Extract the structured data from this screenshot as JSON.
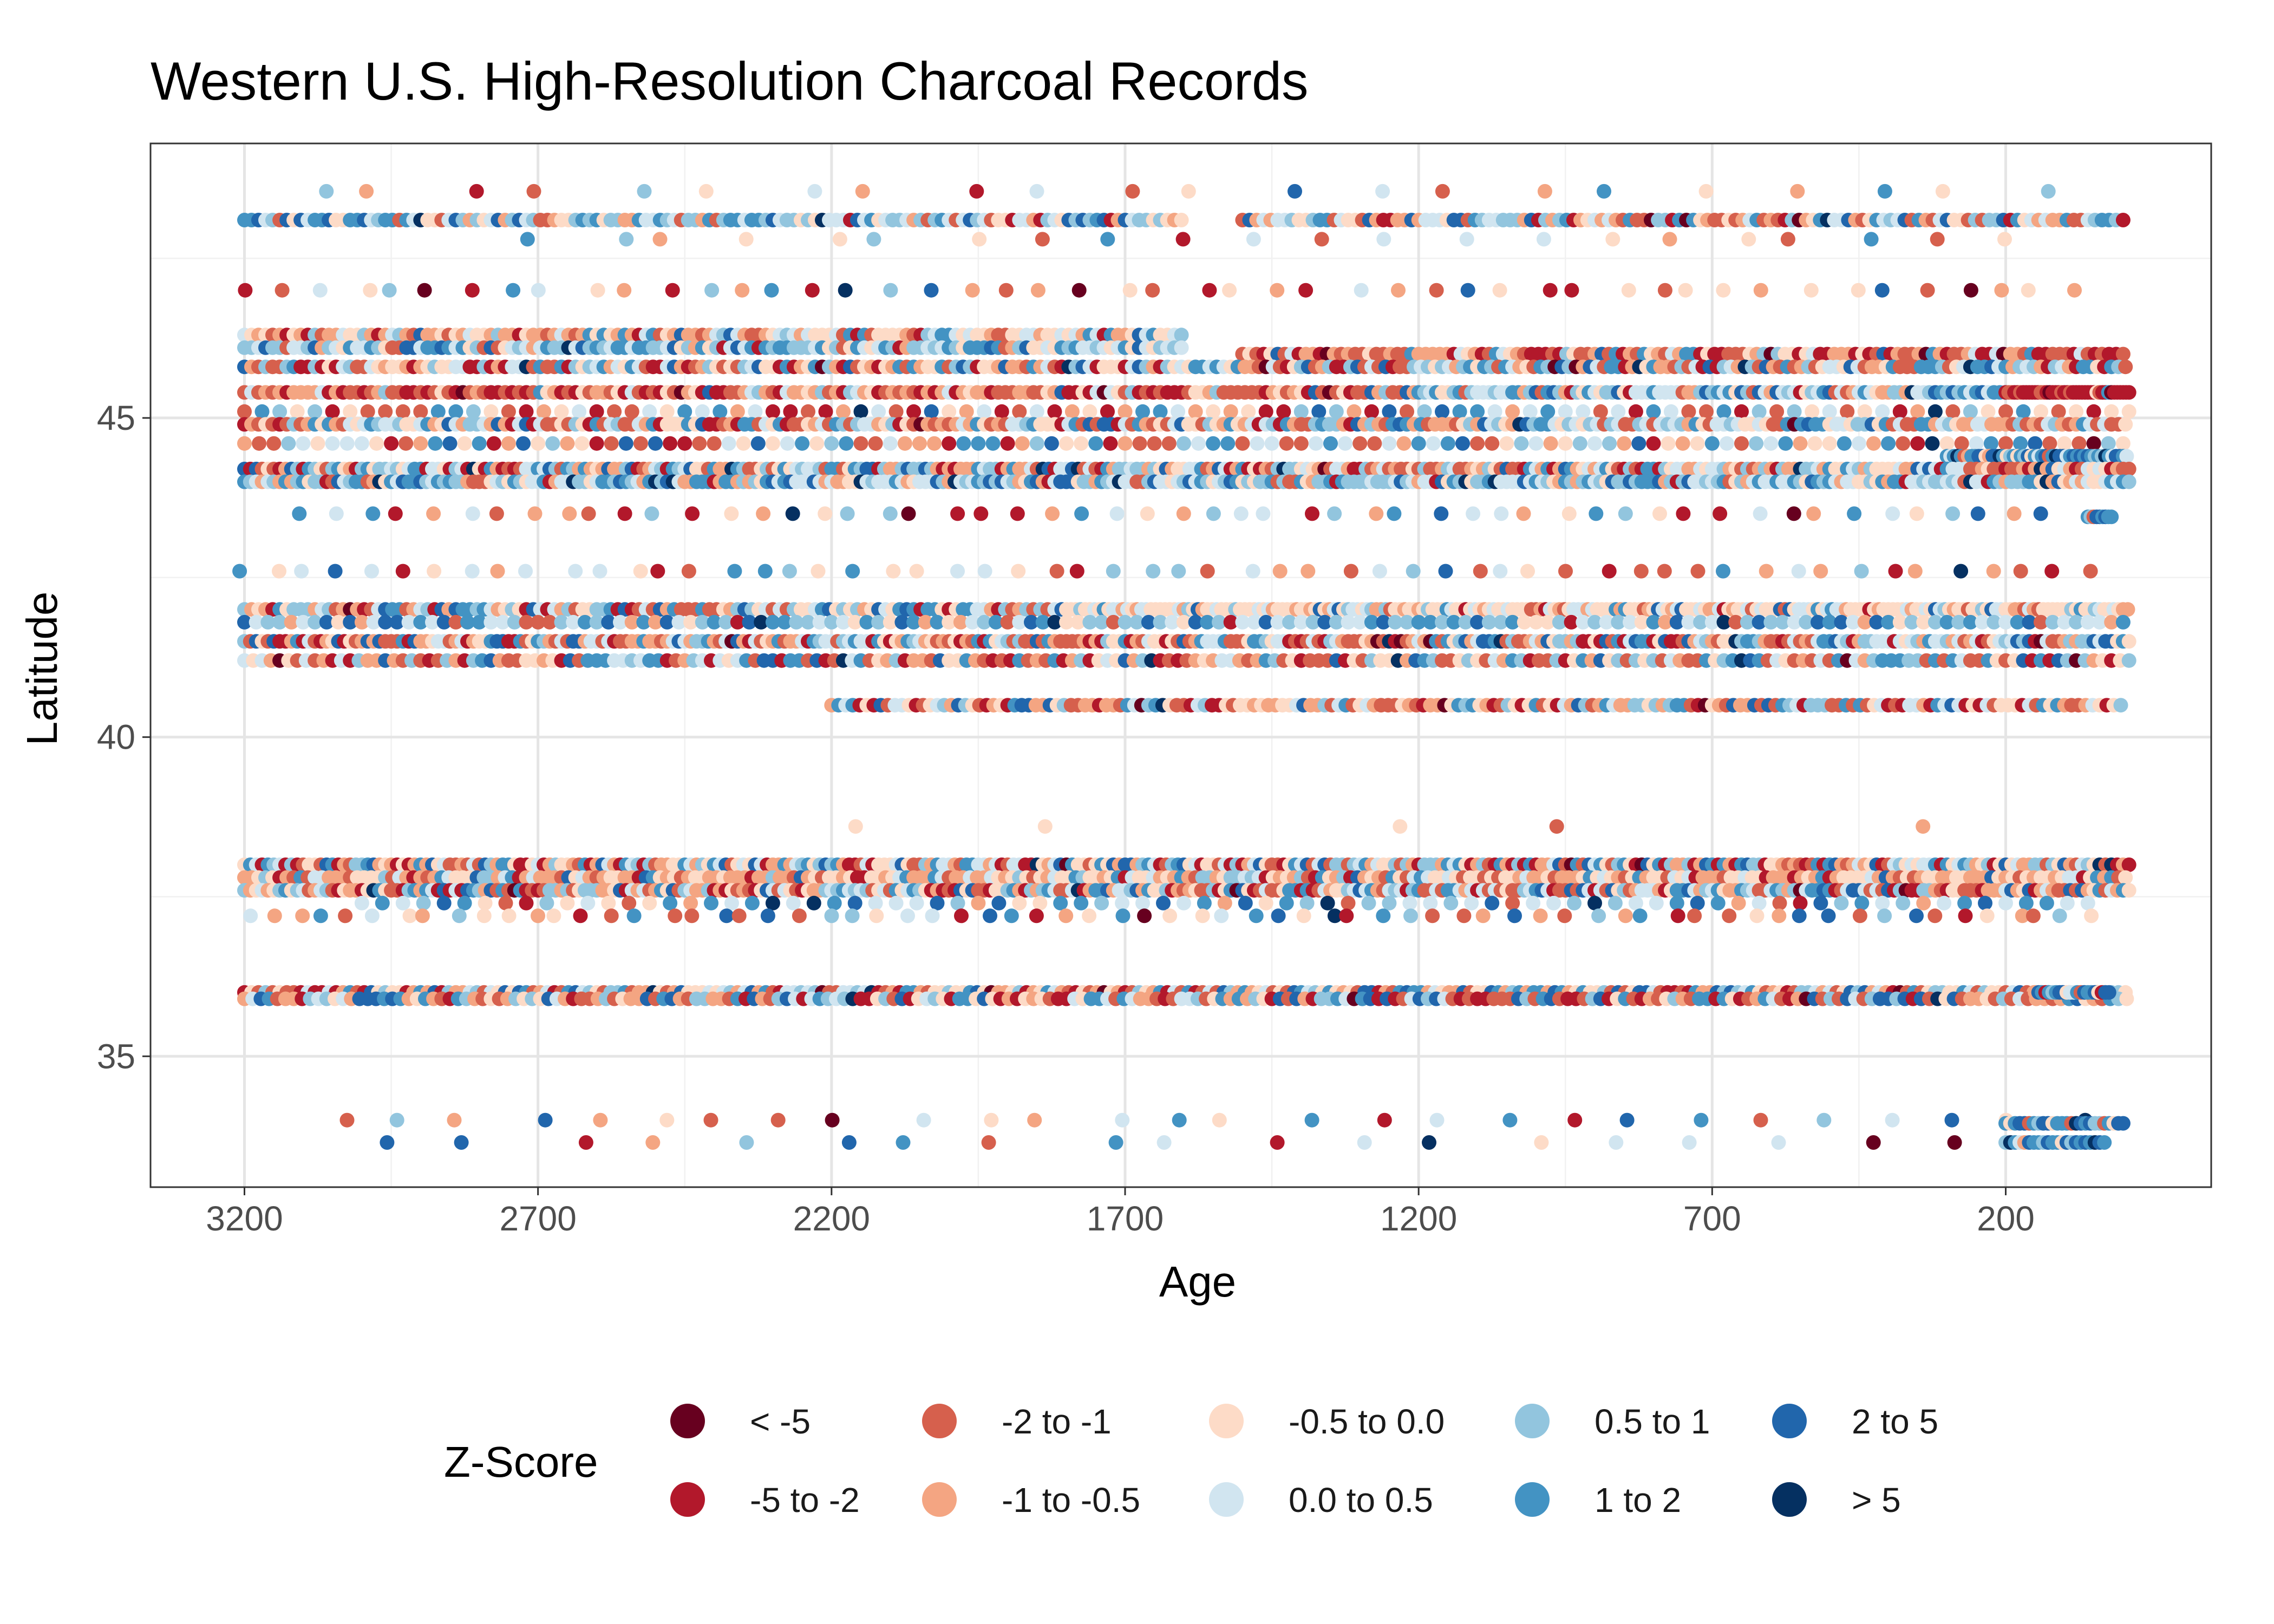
{
  "chart_data": {
    "type": "scatter",
    "title": "Western U.S. High-Resolution Charcoal Records",
    "xlabel": "Age",
    "ylabel": "Latitude",
    "x_reversed": true,
    "xlim": [
      3360,
      -150
    ],
    "ylim": [
      32.95,
      49.3
    ],
    "x_ticks": [
      3200,
      2700,
      2200,
      1700,
      1200,
      700,
      200
    ],
    "x_tick_labels": [
      "3200",
      "2700",
      "2200",
      "1700",
      "1200",
      "700",
      "200"
    ],
    "y_ticks": [
      35,
      40,
      45
    ],
    "y_tick_labels": [
      "35",
      "40",
      "45"
    ],
    "grid": true,
    "legend": {
      "title": "Z-Score",
      "position": "bottom",
      "categories": [
        {
          "label": "< -5",
          "color": "#67001f"
        },
        {
          "label": "-5 to -2",
          "color": "#b2182b"
        },
        {
          "label": "-2 to -1",
          "color": "#d6604d"
        },
        {
          "label": "-1 to -0.5",
          "color": "#f4a582"
        },
        {
          "label": "-0.5 to 0.0",
          "color": "#fddbc7"
        },
        {
          "label": "0.0 to 0.5",
          "color": "#d1e5f0"
        },
        {
          "label": "0.5 to 1",
          "color": "#92c5de"
        },
        {
          "label": "1 to 2",
          "color": "#4393c3"
        },
        {
          "label": "2 to 5",
          "color": "#2166ac"
        },
        {
          "label": "> 5",
          "color": "#053061"
        }
      ]
    },
    "series": [
      {
        "latitude": 48.55,
        "age_range": [
          3100,
          50
        ],
        "mix": "scattered",
        "step": 140
      },
      {
        "latitude": 48.1,
        "age_range": [
          3200,
          1600
        ],
        "mix": "cool",
        "step": 12
      },
      {
        "latitude": 48.1,
        "age_range": [
          1500,
          -10
        ],
        "mix": "mixed",
        "step": 12
      },
      {
        "latitude": 47.8,
        "age_range": [
          2700,
          100
        ],
        "mix": "scattered",
        "step": 120
      },
      {
        "latitude": 47.0,
        "age_range": [
          3200,
          50
        ],
        "mix": "scattered",
        "step": 65
      },
      {
        "latitude": 46.3,
        "age_range": [
          3200,
          1600
        ],
        "mix": "warmlight",
        "step": 12
      },
      {
        "latitude": 46.1,
        "age_range": [
          3200,
          1600
        ],
        "mix": "cool",
        "step": 12
      },
      {
        "latitude": 46.0,
        "age_range": [
          1500,
          -10
        ],
        "mix": "warm",
        "step": 12
      },
      {
        "latitude": 45.8,
        "age_range": [
          3200,
          -10
        ],
        "mix": "mixed",
        "step": 12
      },
      {
        "latitude": 45.4,
        "age_range": [
          3200,
          1200
        ],
        "mix": "warm",
        "step": 12
      },
      {
        "latitude": 45.4,
        "age_range": [
          1200,
          200
        ],
        "mix": "cool",
        "step": 10
      },
      {
        "latitude": 45.4,
        "age_range": [
          200,
          -10
        ],
        "mix": "hot",
        "step": 5
      },
      {
        "latitude": 45.1,
        "age_range": [
          3200,
          -10
        ],
        "mix": "mixed",
        "step": 30
      },
      {
        "latitude": 44.9,
        "age_range": [
          3200,
          -10
        ],
        "mix": "mixed",
        "step": 12
      },
      {
        "latitude": 44.6,
        "age_range": [
          3200,
          -10
        ],
        "mix": "mixed",
        "step": 25
      },
      {
        "latitude": 44.4,
        "age_range": [
          300,
          -10
        ],
        "mix": "coolstrong",
        "step": 6
      },
      {
        "latitude": 44.2,
        "age_range": [
          3200,
          -10
        ],
        "mix": "mixed",
        "step": 10
      },
      {
        "latitude": 44.0,
        "age_range": [
          3200,
          -10
        ],
        "mix": "cool",
        "step": 10
      },
      {
        "latitude": 43.5,
        "age_range": [
          3100,
          100
        ],
        "mix": "scattered",
        "step": 55
      },
      {
        "latitude": 43.45,
        "age_range": [
          60,
          20
        ],
        "mix": "coolstrong",
        "step": 5
      },
      {
        "latitude": 42.6,
        "age_range": [
          3200,
          50
        ],
        "mix": "scattered",
        "step": 55
      },
      {
        "latitude": 42.0,
        "age_range": [
          3200,
          1800
        ],
        "mix": "mixed",
        "step": 12
      },
      {
        "latitude": 42.0,
        "age_range": [
          1800,
          -10
        ],
        "mix": "pale",
        "step": 8
      },
      {
        "latitude": 41.8,
        "age_range": [
          3200,
          -10
        ],
        "mix": "cool",
        "step": 20
      },
      {
        "latitude": 41.5,
        "age_range": [
          3200,
          -10
        ],
        "mix": "mixed",
        "step": 10
      },
      {
        "latitude": 41.2,
        "age_range": [
          3200,
          -10
        ],
        "mix": "mixed",
        "step": 15
      },
      {
        "latitude": 40.5,
        "age_range": [
          2200,
          0
        ],
        "mix": "mixed",
        "step": 12
      },
      {
        "latitude": 38.6,
        "age_range": [
          2200,
          200
        ],
        "mix": "scattered",
        "step": 450
      },
      {
        "latitude": 38.0,
        "age_range": [
          3200,
          -10
        ],
        "mix": "mixed",
        "step": 10
      },
      {
        "latitude": 37.8,
        "age_range": [
          3200,
          -10
        ],
        "mix": "warmlight",
        "step": 12
      },
      {
        "latitude": 37.6,
        "age_range": [
          3200,
          -10
        ],
        "mix": "mixed",
        "step": 10
      },
      {
        "latitude": 37.4,
        "age_range": [
          3000,
          50
        ],
        "mix": "cool",
        "step": 35
      },
      {
        "latitude": 37.2,
        "age_range": [
          3200,
          50
        ],
        "mix": "mixed",
        "step": 45
      },
      {
        "latitude": 36.0,
        "age_range": [
          3200,
          -10
        ],
        "mix": "mixed",
        "step": 12
      },
      {
        "latitude": 35.9,
        "age_range": [
          3200,
          -10
        ],
        "mix": "mixed",
        "step": 14
      },
      {
        "latitude": 36.0,
        "age_range": [
          150,
          20
        ],
        "mix": "coolstrong",
        "step": 6
      },
      {
        "latitude": 34.0,
        "age_range": [
          3050,
          0
        ],
        "mix": "scattered",
        "step": 110
      },
      {
        "latitude": 33.65,
        "age_range": [
          2950,
          100
        ],
        "mix": "scattered",
        "step": 150
      },
      {
        "latitude": 33.95,
        "age_range": [
          200,
          0
        ],
        "mix": "coolstrong",
        "step": 8
      },
      {
        "latitude": 33.65,
        "age_range": [
          200,
          30
        ],
        "mix": "coolstrong",
        "step": 8
      }
    ]
  }
}
